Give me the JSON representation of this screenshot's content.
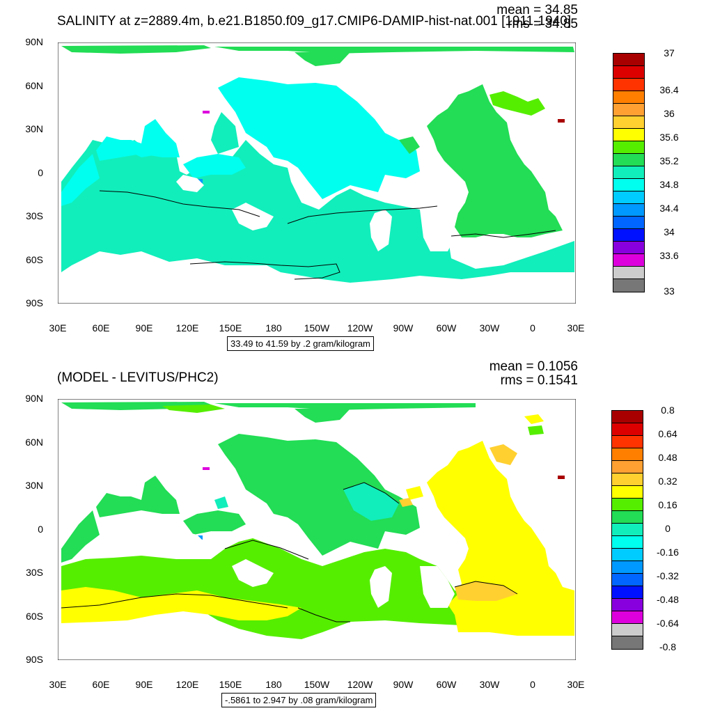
{
  "top": {
    "title": "SALINITY at z=2889.4m, b.e21.B1850.f09_g17.CMIP6-DAMIP-hist-nat.001 [1911-1940]",
    "mean": "mean = 34.85",
    "rms": "rms = 34.85",
    "range": "33.49 to 41.59 by .2 gram/kilogram",
    "colorbar_labels": [
      "37",
      "36.4",
      "36",
      "35.6",
      "35.2",
      "34.8",
      "34.4",
      "34",
      "33.6",
      "33"
    ],
    "colorbar_colors": [
      "#a80000",
      "#dd0000",
      "#ff3300",
      "#ff7f00",
      "#ffa033",
      "#ffd030",
      "#ffff00",
      "#55ee00",
      "#22dd55",
      "#11eebb",
      "#00ffee",
      "#00ccff",
      "#0099ff",
      "#0066ff",
      "#0011ff",
      "#8800dd",
      "#dd00dd",
      "#cccccc",
      "#777777"
    ]
  },
  "bottom": {
    "title": "(MODEL - LEVITUS/PHC2)",
    "mean": "mean = 0.1056",
    "rms": "rms = 0.1541",
    "range": "-.5861 to 2.947 by .08 gram/kilogram",
    "colorbar_labels": [
      "0.8",
      "0.64",
      "0.48",
      "0.32",
      "0.16",
      "0",
      "-0.16",
      "-0.32",
      "-0.48",
      "-0.64",
      "-0.8"
    ],
    "colorbar_colors": [
      "#a80000",
      "#dd0000",
      "#ff3300",
      "#ff7f00",
      "#ffa033",
      "#ffd030",
      "#ffff00",
      "#55ee00",
      "#22dd55",
      "#11eebb",
      "#00ffee",
      "#00ccff",
      "#0099ff",
      "#0066ff",
      "#0011ff",
      "#8800dd",
      "#dd00dd",
      "#cccccc",
      "#777777"
    ]
  },
  "lat_labels": [
    "90N",
    "60N",
    "30N",
    "0",
    "30S",
    "60S",
    "90S"
  ],
  "lon_labels": [
    "30E",
    "60E",
    "90E",
    "120E",
    "150E",
    "180",
    "150W",
    "120W",
    "90W",
    "60W",
    "30W",
    "0",
    "30E"
  ]
}
